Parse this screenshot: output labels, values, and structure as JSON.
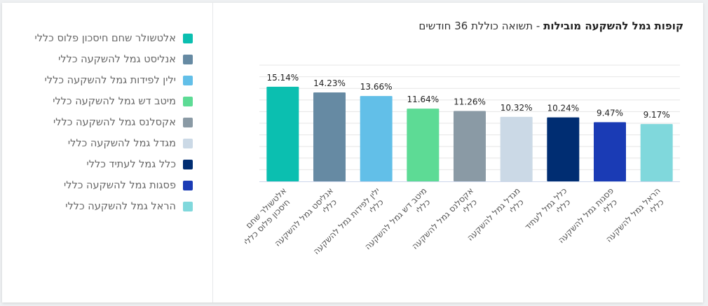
{
  "title": {
    "bold": "קופות גמל להשקעה מובילות",
    "rest": " - תשואה כוללת 36 חודשים"
  },
  "chart_data": {
    "type": "bar",
    "title": "קופות גמל להשקעה מובילות - תשואה כוללת 36 חודשים",
    "categories": [
      "אלטשולר שחם חיסכון פלוס כללי",
      "אנליסט גמל להשקעה כללי",
      "ילין לפידות גמל להשקעה כללי",
      "מיטב דש גמל להשקעה כללי",
      "אקסלנס גמל להשקעה כללי",
      "מגדל גמל להשקעה כללי",
      "כלל גמל לעתיד כללי",
      "פסגות גמל להשקעה כללי",
      "הראל גמל להשקעה כללי"
    ],
    "tick_labels": [
      [
        "אלטשולר שחם",
        "חיסכון פלוס כללי"
      ],
      [
        "אנליסט גמל להשקעה",
        "כללי"
      ],
      [
        "ילין לפידות גמל להשקעה",
        "כללי"
      ],
      [
        "מיטב דש גמל להשקעה",
        "כללי"
      ],
      [
        "אקסלנס גמל להשקעה",
        "כללי"
      ],
      [
        "מגדל גמל להשקעה",
        "כללי"
      ],
      [
        "כלל גמל לעתיד",
        "כללי"
      ],
      [
        "פסגות גמל להשקעה",
        "כללי"
      ],
      [
        "הראל גמל להשקעה",
        "כללי"
      ]
    ],
    "values": [
      15.14,
      14.23,
      13.66,
      11.64,
      11.26,
      10.32,
      10.24,
      9.47,
      9.17
    ],
    "data_labels": [
      "15.14%",
      "14.23%",
      "13.66%",
      "11.64%",
      "11.26%",
      "10.32%",
      "10.24%",
      "9.47%",
      "9.17%"
    ],
    "colors": [
      "#0bbfb0",
      "#668aa3",
      "#62bfe8",
      "#5ddb95",
      "#8a9aa5",
      "#cbd9e6",
      "#002d72",
      "#1a3bb5",
      "#80d8dc"
    ],
    "ylim": [
      0,
      18.6
    ],
    "grid": true,
    "yaxis_labels": false,
    "legend_position": "left"
  }
}
